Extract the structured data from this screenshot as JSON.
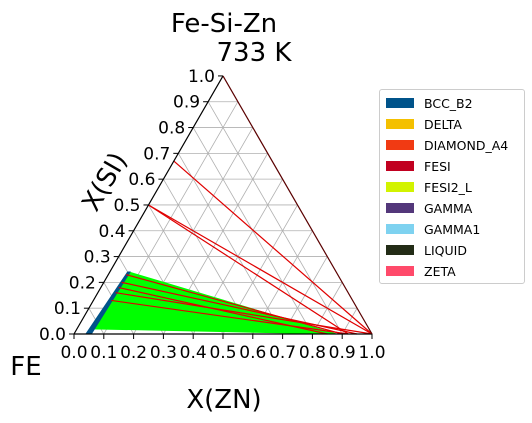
{
  "chart_data": {
    "type": "ternary-phase-diagram",
    "title": "Fe-Si-Zn",
    "subtitle": "733  K",
    "corner_label": "FE",
    "xlabel": "X(ZN)",
    "ylabel": "X(SI)",
    "ticks": [
      "0.0",
      "0.1",
      "0.2",
      "0.3",
      "0.4",
      "0.5",
      "0.6",
      "0.7",
      "0.8",
      "0.9",
      "1.0"
    ],
    "xlim": [
      0,
      1
    ],
    "ylim": [
      0,
      1
    ],
    "grid": true,
    "legend_position": "right",
    "legend": [
      {
        "name": "BCC_B2",
        "color": "#00538a"
      },
      {
        "name": "DELTA",
        "color": "#f4c000"
      },
      {
        "name": "DIAMOND_A4",
        "color": "#f13a13"
      },
      {
        "name": "FESI",
        "color": "#c10020"
      },
      {
        "name": "FESI2_L",
        "color": "#d2f300"
      },
      {
        "name": "GAMMA",
        "color": "#53377a"
      },
      {
        "name": "GAMMA1",
        "color": "#7ed2f0"
      },
      {
        "name": "LIQUID",
        "color": "#232c16"
      },
      {
        "name": "ZETA",
        "color": "#ff4a6a"
      }
    ],
    "regions": [
      {
        "phase": "two-phase field",
        "color": "#00ff00",
        "polygon": [
          [
            0.055,
            0.02
          ],
          [
            0.065,
            0.24
          ],
          [
            0.88,
            0.0
          ],
          [
            0.88,
            0.0
          ]
        ]
      },
      {
        "phase": "BCC_B2",
        "color": "#00538a",
        "polygon": [
          [
            0.04,
            0.0
          ],
          [
            0.058,
            0.0
          ],
          [
            0.068,
            0.24
          ],
          [
            0.06,
            0.24
          ]
        ]
      }
    ],
    "tie_lines": [
      {
        "from": [
          0.0,
          0.67
        ],
        "to": [
          1.0,
          0.0
        ]
      },
      {
        "from": [
          0.0,
          0.5
        ],
        "to": [
          1.0,
          0.0
        ]
      },
      {
        "from": [
          0.0,
          0.5
        ],
        "to": [
          0.92,
          0.0
        ]
      },
      {
        "from": [
          0.06,
          0.23
        ],
        "to": [
          0.9,
          0.0
        ]
      },
      {
        "from": [
          0.06,
          0.2
        ],
        "to": [
          0.95,
          0.0
        ]
      },
      {
        "from": [
          0.06,
          0.18
        ],
        "to": [
          0.85,
          0.0
        ]
      },
      {
        "from": [
          0.06,
          0.16
        ],
        "to": [
          1.0,
          0.0
        ]
      },
      {
        "from": [
          0.06,
          0.13
        ],
        "to": [
          0.92,
          0.0
        ]
      }
    ]
  }
}
